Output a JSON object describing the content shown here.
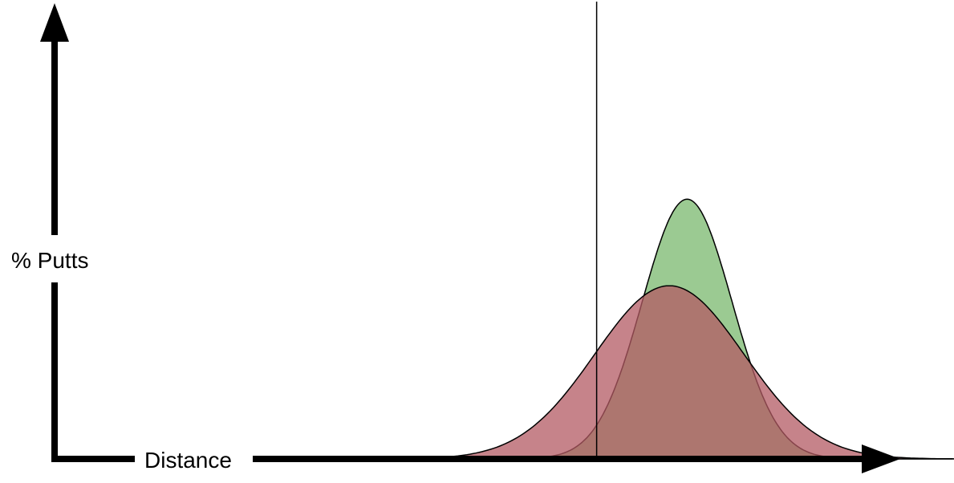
{
  "chart_data": {
    "type": "area",
    "title": "",
    "xlabel": "Distance",
    "ylabel": "% Putts",
    "grid": false,
    "legend": "none",
    "xlim": [
      0,
      1
    ],
    "ylim": [
      0,
      1
    ],
    "reference_line_x": 0.641,
    "series": [
      {
        "color": "#7ab86e",
        "values": {
          "mean": 0.748,
          "sd": 0.053,
          "peak": 0.57
        }
      },
      {
        "color": "#b35a63",
        "values": {
          "mean": 0.727,
          "sd": 0.088,
          "peak": 0.38
        }
      }
    ]
  }
}
